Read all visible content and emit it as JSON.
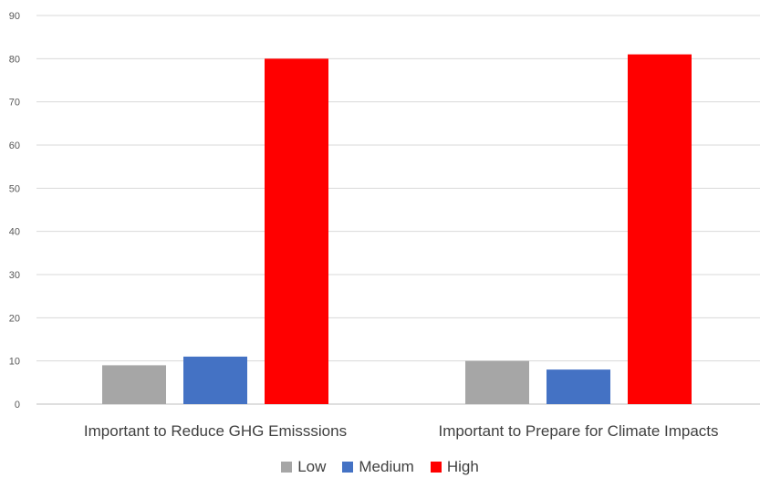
{
  "chart_data": {
    "type": "bar",
    "categories": [
      "Important to Reduce GHG Emisssions",
      "Important to Prepare for Climate Impacts"
    ],
    "series": [
      {
        "name": "Low",
        "values": [
          9,
          10
        ],
        "color": "#a6a6a6"
      },
      {
        "name": "Medium",
        "values": [
          11,
          8
        ],
        "color": "#4472c4"
      },
      {
        "name": "High",
        "values": [
          80,
          81
        ],
        "color": "#ff0000"
      }
    ],
    "ylim": [
      0,
      90
    ],
    "yticks": [
      0,
      10,
      20,
      30,
      40,
      50,
      60,
      70,
      80,
      90
    ],
    "grid": true,
    "legend_position": "bottom",
    "title": "",
    "xlabel": "",
    "ylabel": ""
  }
}
